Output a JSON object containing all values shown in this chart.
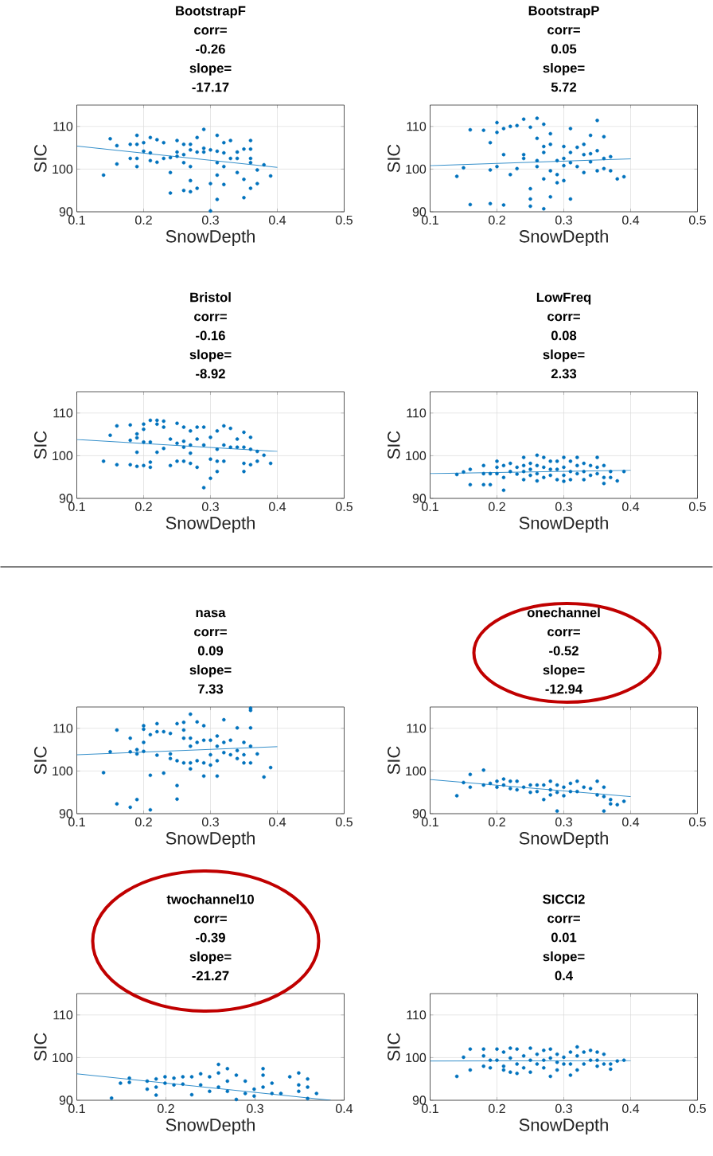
{
  "chart_data": [
    {
      "type": "scatter",
      "title": "BootstrapF",
      "annotations": [
        "corr=",
        "-0.26",
        "slope=",
        "-17.17"
      ],
      "xlabel": "SnowDepth",
      "ylabel": "SIC",
      "xlim": [
        0.1,
        0.5
      ],
      "ylim": [
        90,
        115
      ],
      "xticks": [
        0.1,
        0.2,
        0.3,
        0.4,
        0.5
      ],
      "yticks": [
        90,
        100,
        110
      ],
      "grid": true,
      "marker": "circle",
      "series": [
        {
          "color": "#0072bd",
          "x": [
            0.14,
            0.15,
            0.16,
            0.16,
            0.18,
            0.18,
            0.19,
            0.19,
            0.19,
            0.19,
            0.2,
            0.2,
            0.21,
            0.21,
            0.21,
            0.22,
            0.22,
            0.23,
            0.23,
            0.24,
            0.24,
            0.24,
            0.25,
            0.25,
            0.25,
            0.26,
            0.26,
            0.26,
            0.26,
            0.27,
            0.27,
            0.27,
            0.27,
            0.27,
            0.28,
            0.28,
            0.28,
            0.29,
            0.29,
            0.29,
            0.3,
            0.3,
            0.3,
            0.31,
            0.31,
            0.31,
            0.31,
            0.31,
            0.32,
            0.32,
            0.32,
            0.32,
            0.33,
            0.33,
            0.34,
            0.34,
            0.34,
            0.35,
            0.35,
            0.35,
            0.36,
            0.36,
            0.36,
            0.36,
            0.36,
            0.37,
            0.37,
            0.38,
            0.39
          ],
          "values": [
            98.6,
            107.1,
            105.5,
            101.2,
            105.8,
            102.5,
            107.9,
            105.8,
            102.5,
            100.6,
            106.2,
            104.2,
            107.4,
            102.0,
            103.8,
            106.9,
            101.6,
            106.2,
            102.5,
            102.7,
            94.4,
            99.2,
            106.7,
            104.0,
            103.0,
            105.8,
            103.4,
            101.5,
            95.0,
            105.8,
            104.5,
            100.6,
            97.3,
            94.7,
            107.4,
            104.0,
            95.5,
            109.3,
            104.9,
            104.0,
            104.5,
            96.6,
            90.2,
            107.9,
            104.2,
            101.5,
            98.6,
            92.9,
            106.2,
            103.8,
            100.6,
            96.4,
            106.7,
            102.5,
            104.0,
            102.5,
            99.2,
            104.7,
            97.6,
            93.3,
            106.7,
            104.7,
            102.5,
            101.5,
            95.5,
            99.8,
            96.6,
            101.0,
            98.4
          ]
        },
        {
          "type": "line",
          "marker": "none",
          "color": "#0072bd",
          "x": [
            0.1,
            0.4
          ],
          "values": [
            105.4,
            100.4
          ]
        }
      ]
    },
    {
      "type": "scatter",
      "title": "BootstrapP",
      "annotations": [
        "corr=",
        "0.05",
        "slope=",
        "5.72"
      ],
      "xlabel": "SnowDepth",
      "ylabel": "SIC",
      "xlim": [
        0.1,
        0.5
      ],
      "ylim": [
        90,
        115
      ],
      "xticks": [
        0.1,
        0.2,
        0.3,
        0.4,
        0.5
      ],
      "yticks": [
        90,
        100,
        110
      ],
      "grid": true,
      "marker": "circle",
      "series": [
        {
          "color": "#0072bd",
          "x": [
            0.14,
            0.15,
            0.16,
            0.16,
            0.18,
            0.19,
            0.19,
            0.19,
            0.2,
            0.2,
            0.2,
            0.21,
            0.21,
            0.21,
            0.22,
            0.22,
            0.23,
            0.23,
            0.24,
            0.24,
            0.24,
            0.25,
            0.25,
            0.25,
            0.25,
            0.26,
            0.26,
            0.26,
            0.26,
            0.27,
            0.27,
            0.27,
            0.27,
            0.27,
            0.28,
            0.28,
            0.28,
            0.28,
            0.29,
            0.29,
            0.29,
            0.3,
            0.3,
            0.3,
            0.3,
            0.31,
            0.31,
            0.31,
            0.31,
            0.32,
            0.32,
            0.33,
            0.33,
            0.33,
            0.34,
            0.34,
            0.34,
            0.35,
            0.35,
            0.35,
            0.36,
            0.36,
            0.36,
            0.37,
            0.37,
            0.38,
            0.39
          ],
          "values": [
            98.3,
            100.3,
            109.2,
            91.7,
            109.1,
            99.8,
            106.2,
            91.9,
            110.9,
            108.6,
            100.6,
            109.5,
            103.4,
            91.6,
            110.0,
            98.7,
            110.2,
            100.1,
            111.7,
            103.4,
            102.5,
            109.8,
            95.4,
            93.0,
            91.3,
            111.9,
            107.2,
            102.0,
            100.6,
            110.5,
            105.3,
            103.9,
            97.7,
            90.7,
            108.3,
            105.8,
            99.6,
            93.5,
            102.0,
            98.7,
            96.8,
            105.3,
            102.5,
            100.8,
            97.3,
            109.5,
            103.9,
            101.5,
            93.0,
            105.1,
            100.6,
            105.8,
            103.4,
            99.2,
            107.9,
            103.6,
            101.7,
            111.4,
            104.3,
            99.6,
            107.6,
            102.5,
            100.1,
            102.9,
            99.6,
            97.7,
            98.2
          ]
        },
        {
          "type": "line",
          "marker": "none",
          "color": "#0072bd",
          "x": [
            0.1,
            0.4
          ],
          "values": [
            100.8,
            102.4
          ]
        }
      ]
    },
    {
      "type": "scatter",
      "title": "Bristol",
      "annotations": [
        "corr=",
        "-0.16",
        "slope=",
        "-8.92"
      ],
      "xlabel": "SnowDepth",
      "ylabel": "SIC",
      "xlim": [
        0.1,
        0.5
      ],
      "ylim": [
        90,
        115
      ],
      "xticks": [
        0.1,
        0.2,
        0.3,
        0.4,
        0.5
      ],
      "yticks": [
        90,
        100,
        110
      ],
      "grid": true,
      "marker": "circle",
      "series": [
        {
          "color": "#0072bd",
          "x": [
            0.14,
            0.15,
            0.16,
            0.16,
            0.18,
            0.18,
            0.18,
            0.19,
            0.19,
            0.19,
            0.19,
            0.2,
            0.2,
            0.2,
            0.2,
            0.21,
            0.21,
            0.21,
            0.21,
            0.22,
            0.22,
            0.22,
            0.23,
            0.23,
            0.23,
            0.24,
            0.24,
            0.25,
            0.25,
            0.25,
            0.26,
            0.26,
            0.26,
            0.26,
            0.27,
            0.27,
            0.27,
            0.27,
            0.28,
            0.28,
            0.28,
            0.29,
            0.29,
            0.29,
            0.3,
            0.3,
            0.3,
            0.31,
            0.31,
            0.31,
            0.31,
            0.32,
            0.32,
            0.32,
            0.33,
            0.33,
            0.34,
            0.34,
            0.35,
            0.35,
            0.35,
            0.35,
            0.36,
            0.36,
            0.36,
            0.37,
            0.37,
            0.38,
            0.39
          ],
          "values": [
            98.7,
            104.8,
            107.0,
            97.9,
            107.2,
            103.6,
            97.9,
            105.1,
            104.2,
            100.8,
            97.5,
            107.4,
            106.2,
            103.2,
            97.7,
            108.3,
            103.2,
            98.5,
            97.3,
            108.3,
            107.4,
            100.8,
            108.1,
            106.7,
            101.7,
            103.9,
            97.7,
            107.6,
            102.9,
            98.7,
            106.7,
            103.4,
            102.0,
            98.7,
            105.8,
            102.5,
            100.6,
            98.2,
            106.7,
            103.9,
            97.3,
            106.7,
            102.5,
            92.5,
            104.3,
            99.2,
            94.7,
            105.8,
            101.5,
            98.7,
            96.3,
            107.0,
            102.5,
            98.7,
            106.4,
            102.0,
            103.9,
            102.0,
            105.5,
            102.0,
            98.2,
            96.3,
            104.3,
            101.5,
            97.9,
            101.0,
            98.7,
            100.1,
            98.2
          ]
        },
        {
          "type": "line",
          "marker": "none",
          "color": "#0072bd",
          "x": [
            0.1,
            0.4
          ],
          "values": [
            103.8,
            101.0
          ]
        }
      ]
    },
    {
      "type": "scatter",
      "title": "LowFreq",
      "annotations": [
        "corr=",
        "0.08",
        "slope=",
        "2.33"
      ],
      "xlabel": "SnowDepth",
      "ylabel": "SIC",
      "xlim": [
        0.1,
        0.5
      ],
      "ylim": [
        90,
        115
      ],
      "xticks": [
        0.1,
        0.2,
        0.3,
        0.4,
        0.5
      ],
      "yticks": [
        90,
        100,
        110
      ],
      "grid": true,
      "marker": "circle",
      "series": [
        {
          "color": "#0072bd",
          "x": [
            0.14,
            0.15,
            0.16,
            0.16,
            0.18,
            0.18,
            0.18,
            0.19,
            0.19,
            0.2,
            0.2,
            0.2,
            0.21,
            0.21,
            0.21,
            0.22,
            0.22,
            0.23,
            0.23,
            0.24,
            0.24,
            0.24,
            0.24,
            0.25,
            0.25,
            0.25,
            0.26,
            0.26,
            0.26,
            0.26,
            0.27,
            0.27,
            0.27,
            0.28,
            0.28,
            0.28,
            0.29,
            0.29,
            0.29,
            0.3,
            0.3,
            0.3,
            0.3,
            0.31,
            0.31,
            0.31,
            0.32,
            0.32,
            0.32,
            0.33,
            0.33,
            0.33,
            0.34,
            0.34,
            0.35,
            0.35,
            0.35,
            0.36,
            0.36,
            0.36,
            0.37,
            0.37,
            0.38,
            0.39
          ],
          "values": [
            95.6,
            96.2,
            96.8,
            93.2,
            97.7,
            95.8,
            93.2,
            95.8,
            93.2,
            98.7,
            97.3,
            95.8,
            97.7,
            94.9,
            91.9,
            98.2,
            96.3,
            97.3,
            95.7,
            99.6,
            97.7,
            96.3,
            94.4,
            98.2,
            96.8,
            95.4,
            100.1,
            97.7,
            95.8,
            94.1,
            99.6,
            97.3,
            94.9,
            98.7,
            96.8,
            95.4,
            98.7,
            96.8,
            94.4,
            99.6,
            97.3,
            95.4,
            94.0,
            98.7,
            96.3,
            94.4,
            99.6,
            97.7,
            95.8,
            98.2,
            96.3,
            94.4,
            97.7,
            95.4,
            99.6,
            97.3,
            95.8,
            97.7,
            94.9,
            93.5,
            96.3,
            94.9,
            94.1,
            96.3
          ]
        },
        {
          "type": "line",
          "marker": "none",
          "color": "#0072bd",
          "x": [
            0.1,
            0.4
          ],
          "values": [
            95.8,
            96.6
          ]
        }
      ]
    },
    {
      "type": "scatter",
      "title": "nasa",
      "annotations": [
        "corr=",
        "0.09",
        "slope=",
        "7.33"
      ],
      "xlabel": "SnowDepth",
      "ylabel": "SIC",
      "xlim": [
        0.1,
        0.5
      ],
      "ylim": [
        90,
        115
      ],
      "xticks": [
        0.1,
        0.2,
        0.3,
        0.4,
        0.5
      ],
      "yticks": [
        90,
        100,
        110
      ],
      "grid": true,
      "marker": "circle",
      "series": [
        {
          "color": "#0072bd",
          "x": [
            0.14,
            0.15,
            0.16,
            0.16,
            0.18,
            0.18,
            0.18,
            0.19,
            0.19,
            0.19,
            0.2,
            0.2,
            0.2,
            0.2,
            0.21,
            0.21,
            0.21,
            0.22,
            0.22,
            0.22,
            0.23,
            0.23,
            0.24,
            0.24,
            0.24,
            0.25,
            0.25,
            0.25,
            0.25,
            0.26,
            0.26,
            0.26,
            0.26,
            0.27,
            0.27,
            0.27,
            0.27,
            0.27,
            0.28,
            0.28,
            0.28,
            0.29,
            0.29,
            0.29,
            0.29,
            0.3,
            0.3,
            0.3,
            0.31,
            0.31,
            0.31,
            0.31,
            0.32,
            0.32,
            0.32,
            0.33,
            0.33,
            0.34,
            0.34,
            0.34,
            0.35,
            0.35,
            0.35,
            0.36,
            0.36,
            0.36,
            0.36,
            0.36,
            0.37,
            0.38,
            0.39
          ],
          "values": [
            99.6,
            104.5,
            109.6,
            92.3,
            107.7,
            104.5,
            91.5,
            105.0,
            104.0,
            93.3,
            110.6,
            109.8,
            106.7,
            104.6,
            108.5,
            99.0,
            90.9,
            111.1,
            109.2,
            103.7,
            109.2,
            99.5,
            108.8,
            104.0,
            102.9,
            111.1,
            102.4,
            96.6,
            93.4,
            111.4,
            109.6,
            107.7,
            101.9,
            113.3,
            107.7,
            105.8,
            101.9,
            100.5,
            111.5,
            106.7,
            102.4,
            110.6,
            107.2,
            101.9,
            98.8,
            107.2,
            103.8,
            101.4,
            108.2,
            105.8,
            102.4,
            98.8,
            112.0,
            106.7,
            104.3,
            107.2,
            103.8,
            110.1,
            104.8,
            102.9,
            106.7,
            103.8,
            101.9,
            114.7,
            114.2,
            110.1,
            105.8,
            101.9,
            104.0,
            98.6,
            100.8
          ]
        },
        {
          "type": "line",
          "marker": "none",
          "color": "#0072bd",
          "x": [
            0.1,
            0.4
          ],
          "values": [
            103.8,
            105.7
          ]
        }
      ]
    },
    {
      "type": "scatter",
      "title": "onechannel",
      "annotations": [
        "corr=",
        "-0.52",
        "slope=",
        "-12.94"
      ],
      "xlabel": "SnowDepth",
      "ylabel": "SIC",
      "xlim": [
        0.1,
        0.5
      ],
      "ylim": [
        90,
        115
      ],
      "xticks": [
        0.1,
        0.2,
        0.3,
        0.4,
        0.5
      ],
      "yticks": [
        90,
        100,
        110
      ],
      "grid": true,
      "marker": "circle",
      "series": [
        {
          "color": "#0072bd",
          "x": [
            0.14,
            0.15,
            0.16,
            0.16,
            0.18,
            0.18,
            0.19,
            0.2,
            0.2,
            0.21,
            0.21,
            0.22,
            0.22,
            0.23,
            0.23,
            0.24,
            0.25,
            0.25,
            0.26,
            0.26,
            0.27,
            0.27,
            0.28,
            0.28,
            0.28,
            0.29,
            0.29,
            0.29,
            0.3,
            0.3,
            0.31,
            0.31,
            0.32,
            0.32,
            0.33,
            0.34,
            0.35,
            0.35,
            0.36,
            0.36,
            0.36,
            0.37,
            0.37,
            0.38,
            0.39
          ],
          "values": [
            94.2,
            97.3,
            99.2,
            96.2,
            100.2,
            96.7,
            97.1,
            97.6,
            96.2,
            98.1,
            96.7,
            97.6,
            95.9,
            97.6,
            95.6,
            96.2,
            96.7,
            95.0,
            96.7,
            95.2,
            96.7,
            93.3,
            97.6,
            95.6,
            94.4,
            96.7,
            95.0,
            90.6,
            96.2,
            94.2,
            97.1,
            95.2,
            97.6,
            95.2,
            96.2,
            95.9,
            97.6,
            94.4,
            96.2,
            94.0,
            90.6,
            93.3,
            92.3,
            92.1,
            92.9
          ]
        },
        {
          "type": "line",
          "marker": "none",
          "color": "#0072bd",
          "x": [
            0.1,
            0.4
          ],
          "values": [
            98.0,
            94.0
          ]
        }
      ]
    },
    {
      "type": "scatter",
      "title": "twochannel10",
      "annotations": [
        "corr=",
        "-0.39",
        "slope=",
        "-21.27"
      ],
      "xlabel": "SnowDepth",
      "ylabel": "SIC",
      "xlim": [
        0.1,
        0.4
      ],
      "ylim": [
        90,
        115
      ],
      "xticks": [
        0.1,
        0.2,
        0.3,
        0.4
      ],
      "yticks": [
        90,
        100,
        110
      ],
      "grid": true,
      "marker": "circle",
      "series": [
        {
          "color": "#0072bd",
          "x": [
            0.139,
            0.149,
            0.159,
            0.159,
            0.179,
            0.179,
            0.189,
            0.189,
            0.189,
            0.199,
            0.199,
            0.209,
            0.209,
            0.219,
            0.219,
            0.229,
            0.229,
            0.239,
            0.239,
            0.249,
            0.249,
            0.259,
            0.259,
            0.259,
            0.269,
            0.269,
            0.269,
            0.279,
            0.279,
            0.289,
            0.289,
            0.299,
            0.299,
            0.309,
            0.309,
            0.309,
            0.319,
            0.319,
            0.329,
            0.339,
            0.349,
            0.349,
            0.349,
            0.359,
            0.359,
            0.359,
            0.369
          ],
          "values": [
            90.5,
            94.0,
            95.2,
            94.2,
            94.5,
            92.6,
            95.0,
            93.1,
            91.2,
            95.5,
            94.0,
            95.2,
            93.6,
            95.5,
            93.8,
            95.5,
            91.3,
            96.2,
            93.6,
            95.5,
            92.1,
            98.4,
            96.4,
            93.1,
            97.4,
            94.5,
            92.1,
            95.9,
            90.2,
            94.5,
            91.6,
            92.6,
            91.0,
            97.4,
            95.9,
            93.1,
            94.0,
            91.6,
            91.6,
            95.5,
            96.4,
            93.6,
            92.1,
            95.0,
            93.1,
            90.4,
            91.6
          ]
        },
        {
          "type": "line",
          "marker": "none",
          "color": "#0072bd",
          "x": [
            0.1,
            0.385
          ],
          "values": [
            96.2,
            90.0
          ]
        }
      ]
    },
    {
      "type": "scatter",
      "title": "SICCI2",
      "annotations": [
        "corr=",
        "0.01",
        "slope=",
        "0.4"
      ],
      "xlabel": "SnowDepth",
      "ylabel": "SIC",
      "xlim": [
        0.1,
        0.5
      ],
      "ylim": [
        90,
        115
      ],
      "xticks": [
        0.1,
        0.2,
        0.3,
        0.4,
        0.5
      ],
      "yticks": [
        90,
        100,
        110
      ],
      "grid": true,
      "marker": "circle",
      "series": [
        {
          "color": "#0072bd",
          "x": [
            0.14,
            0.15,
            0.16,
            0.16,
            0.18,
            0.18,
            0.18,
            0.19,
            0.19,
            0.2,
            0.2,
            0.21,
            0.21,
            0.21,
            0.22,
            0.22,
            0.22,
            0.23,
            0.23,
            0.23,
            0.24,
            0.24,
            0.25,
            0.25,
            0.25,
            0.26,
            0.26,
            0.27,
            0.27,
            0.27,
            0.28,
            0.28,
            0.28,
            0.29,
            0.29,
            0.29,
            0.3,
            0.3,
            0.31,
            0.31,
            0.31,
            0.32,
            0.32,
            0.32,
            0.33,
            0.33,
            0.34,
            0.34,
            0.35,
            0.35,
            0.35,
            0.36,
            0.36,
            0.37,
            0.37,
            0.38,
            0.39
          ],
          "values": [
            95.6,
            100.1,
            102.0,
            97.1,
            102.0,
            100.4,
            98.0,
            99.4,
            97.6,
            102.0,
            99.4,
            101.3,
            98.0,
            97.1,
            102.2,
            99.9,
            96.6,
            102.0,
            98.5,
            96.3,
            100.4,
            97.6,
            102.2,
            99.4,
            96.6,
            100.8,
            98.5,
            101.7,
            99.4,
            97.6,
            102.0,
            99.9,
            95.6,
            100.8,
            98.9,
            97.1,
            100.1,
            98.5,
            101.3,
            98.5,
            95.9,
            102.5,
            100.4,
            97.1,
            101.3,
            98.5,
            101.7,
            99.4,
            101.3,
            99.4,
            98.0,
            100.8,
            98.5,
            98.5,
            97.3,
            99.2,
            99.4
          ]
        },
        {
          "type": "line",
          "marker": "none",
          "color": "#0072bd",
          "x": [
            0.1,
            0.4
          ],
          "values": [
            99.2,
            99.3
          ]
        }
      ]
    }
  ]
}
